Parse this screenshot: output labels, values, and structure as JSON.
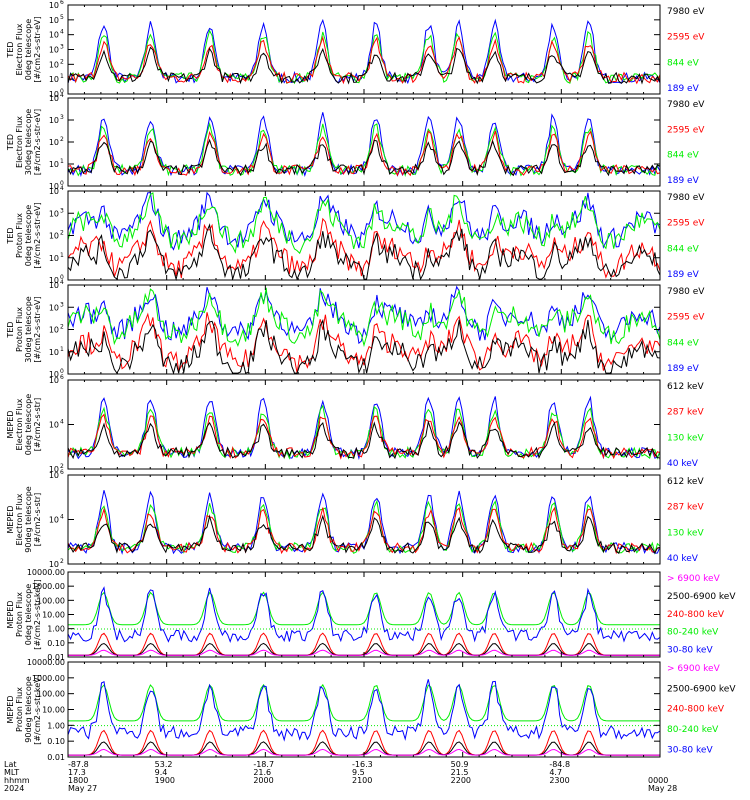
{
  "colors": {
    "blue": "#0000ff",
    "red": "#ff0000",
    "green": "#00ee00",
    "black": "#000000",
    "magenta": "#ff00ff"
  },
  "chart_data": [
    {
      "type": "line",
      "ylabel": [
        "TED",
        "Electron Flux",
        "0deg telescope",
        "[#/cm2-s-str-eV]"
      ],
      "yscale": "log",
      "ylim_exp": [
        0,
        6
      ],
      "yticks": [
        "10^0",
        "10^1",
        "10^2",
        "10^3",
        "10^4",
        "10^5",
        "10^6"
      ],
      "legend": [
        {
          "label": "7980 eV",
          "color": "black"
        },
        {
          "label": "2595 eV",
          "color": "red"
        },
        {
          "label": "844 eV",
          "color": "green"
        },
        {
          "label": "189 eV",
          "color": "blue"
        }
      ]
    },
    {
      "type": "line",
      "ylabel": [
        "TED",
        "Electron Flux",
        "30deg telescope",
        "[#/cm2-s-str-eV]"
      ],
      "yscale": "log",
      "ylim_exp": [
        0,
        5
      ],
      "yticks": [
        "10^0",
        "10^1",
        "10^2",
        "10^3",
        "10^4"
      ],
      "legend": [
        {
          "label": "7980 eV",
          "color": "black"
        },
        {
          "label": "2595 eV",
          "color": "red"
        },
        {
          "label": "844 eV",
          "color": "green"
        },
        {
          "label": "189 eV",
          "color": "blue"
        }
      ]
    },
    {
      "type": "line",
      "ylabel": [
        "TED",
        "Proton Flux",
        "0deg telescope",
        "[#/cm2-s-str-eV]"
      ],
      "yscale": "log",
      "ylim_exp": [
        0,
        5
      ],
      "yticks": [
        "10^0",
        "10^1",
        "10^2",
        "10^3",
        "10^4"
      ],
      "legend": [
        {
          "label": "7980 eV",
          "color": "black"
        },
        {
          "label": "2595 eV",
          "color": "red"
        },
        {
          "label": "844 eV",
          "color": "green"
        },
        {
          "label": "189 eV",
          "color": "blue"
        }
      ]
    },
    {
      "type": "line",
      "ylabel": [
        "TED",
        "Proton Flux",
        "30deg telescope",
        "[#/cm2-s-str-eV]"
      ],
      "yscale": "log",
      "ylim_exp": [
        0,
        5
      ],
      "yticks": [
        "10^0",
        "10^1",
        "10^2",
        "10^3",
        "10^4"
      ],
      "legend": [
        {
          "label": "7980 eV",
          "color": "black"
        },
        {
          "label": "2595 eV",
          "color": "red"
        },
        {
          "label": "844 eV",
          "color": "green"
        },
        {
          "label": "189 eV",
          "color": "blue"
        }
      ]
    },
    {
      "type": "line",
      "ylabel": [
        "MEPED",
        "Electron Flux",
        "0deg telescope",
        "[#/cm2-s-str]"
      ],
      "yscale": "log",
      "ylim_exp": [
        2,
        7
      ],
      "yticks": [
        "10^2",
        "10^4",
        "10^6"
      ],
      "legend": [
        {
          "label": "612 keV",
          "color": "black"
        },
        {
          "label": "287 keV",
          "color": "red"
        },
        {
          "label": "130 keV",
          "color": "green"
        },
        {
          "label": "40 keV",
          "color": "blue"
        }
      ]
    },
    {
      "type": "line",
      "ylabel": [
        "MEPED",
        "Electron Flux",
        "90deg telescope",
        "[#/cm2-s-str]"
      ],
      "yscale": "log",
      "ylim_exp": [
        2,
        7
      ],
      "yticks": [
        "10^2",
        "10^4",
        "10^6"
      ],
      "legend": [
        {
          "label": "612 keV",
          "color": "black"
        },
        {
          "label": "287 keV",
          "color": "red"
        },
        {
          "label": "130 keV",
          "color": "green"
        },
        {
          "label": "40 keV",
          "color": "blue"
        }
      ]
    },
    {
      "type": "line",
      "ylabel": [
        "MEPED",
        "Proton Flux",
        "0deg telescope",
        "[#/cm2-s-str-keV]"
      ],
      "yscale": "log",
      "ylim_exp": [
        -2,
        4
      ],
      "yticks": [
        "0.01",
        "0.10",
        "1.00",
        "10.00",
        "100.00",
        "1000.00",
        "10000.00"
      ],
      "legend": [
        {
          "label": "> 6900 keV",
          "color": "magenta"
        },
        {
          "label": "2500-6900 keV",
          "color": "black"
        },
        {
          "label": "240-800 keV",
          "color": "red"
        },
        {
          "label": "80-240 keV",
          "color": "green"
        },
        {
          "label": "30-80 keV",
          "color": "blue"
        }
      ]
    },
    {
      "type": "line",
      "ylabel": [
        "MEPED",
        "Proton Flux",
        "90deg telescope",
        "[#/cm2-s-str-keV]"
      ],
      "yscale": "log",
      "ylim_exp": [
        -2,
        4
      ],
      "yticks": [
        "0.01",
        "0.10",
        "1.00",
        "10.00",
        "100.00",
        "1000.00",
        "10000.00"
      ],
      "legend": [
        {
          "label": "> 6900 keV",
          "color": "magenta"
        },
        {
          "label": "2500-6900 keV",
          "color": "black"
        },
        {
          "label": "240-800 keV",
          "color": "red"
        },
        {
          "label": "80-240 keV",
          "color": "green"
        },
        {
          "label": "30-80 keV",
          "color": "blue"
        }
      ]
    }
  ],
  "xaxis": {
    "row_labels": [
      "Lat",
      "MLT",
      "hhmm",
      "2024"
    ],
    "columns": [
      {
        "lat": "-87.8",
        "mlt": "17.3",
        "hhmm": "1800",
        "date": "May 27"
      },
      {
        "lat": "53.2",
        "mlt": "9.4",
        "hhmm": "1900",
        "date": ""
      },
      {
        "lat": "-18.7",
        "mlt": "21.6",
        "hhmm": "2000",
        "date": ""
      },
      {
        "lat": "-16.3",
        "mlt": "9.5",
        "hhmm": "2100",
        "date": ""
      },
      {
        "lat": "50.9",
        "mlt": "21.5",
        "hhmm": "2200",
        "date": ""
      },
      {
        "lat": "-84.8",
        "mlt": "4.7",
        "hhmm": "2300",
        "date": ""
      },
      {
        "lat": "",
        "mlt": "",
        "hhmm": "0000",
        "date": "May 28"
      }
    ]
  }
}
